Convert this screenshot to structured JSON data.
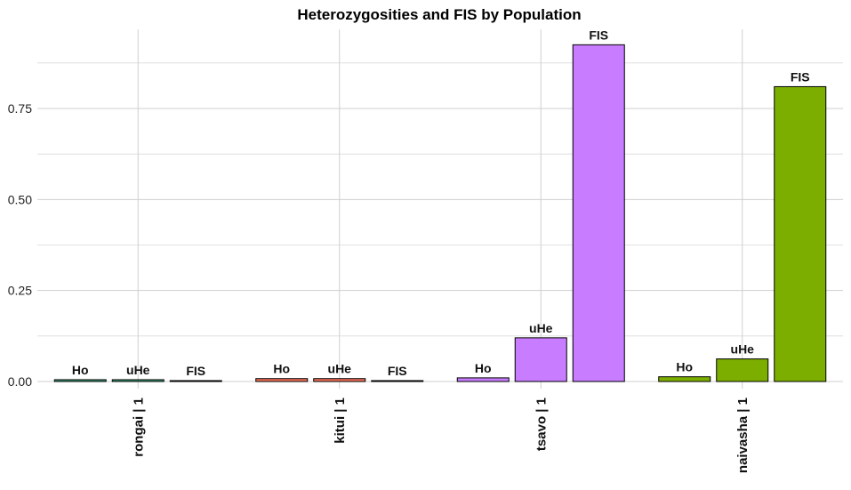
{
  "chart_data": {
    "type": "bar",
    "title": "Heterozygosities and FIS by Population",
    "xlabel": "",
    "ylabel": "",
    "ylim": [
      -0.02,
      0.93
    ],
    "yticks": [
      0.0,
      0.25,
      0.5,
      0.75
    ],
    "ytick_labels": [
      "0.00",
      "0.25",
      "0.50",
      "0.75"
    ],
    "grid": true,
    "legend": "none",
    "categories": [
      "rongai | 1",
      "kitui | 1",
      "tsavo | 1",
      "naivasha | 1"
    ],
    "metrics": [
      "Ho",
      "uHe",
      "FIS"
    ],
    "colors": [
      "#3aa37a",
      "#f0705a",
      "#c87cff",
      "#7cae00"
    ],
    "groups": [
      {
        "category": "rongai | 1",
        "values": [
          0.005,
          0.005,
          0.0
        ],
        "labels": [
          "Ho",
          "uHe",
          "FIS"
        ]
      },
      {
        "category": "kitui | 1",
        "values": [
          0.008,
          0.008,
          0.0
        ],
        "labels": [
          "Ho",
          "uHe",
          "FIS"
        ]
      },
      {
        "category": "tsavo | 1",
        "values": [
          0.01,
          0.12,
          0.925
        ],
        "labels": [
          "Ho",
          "uHe",
          "FIS"
        ]
      },
      {
        "category": "naivasha | 1",
        "values": [
          0.013,
          0.062,
          0.81
        ],
        "labels": [
          "Ho",
          "uHe",
          "FIS"
        ]
      }
    ]
  }
}
